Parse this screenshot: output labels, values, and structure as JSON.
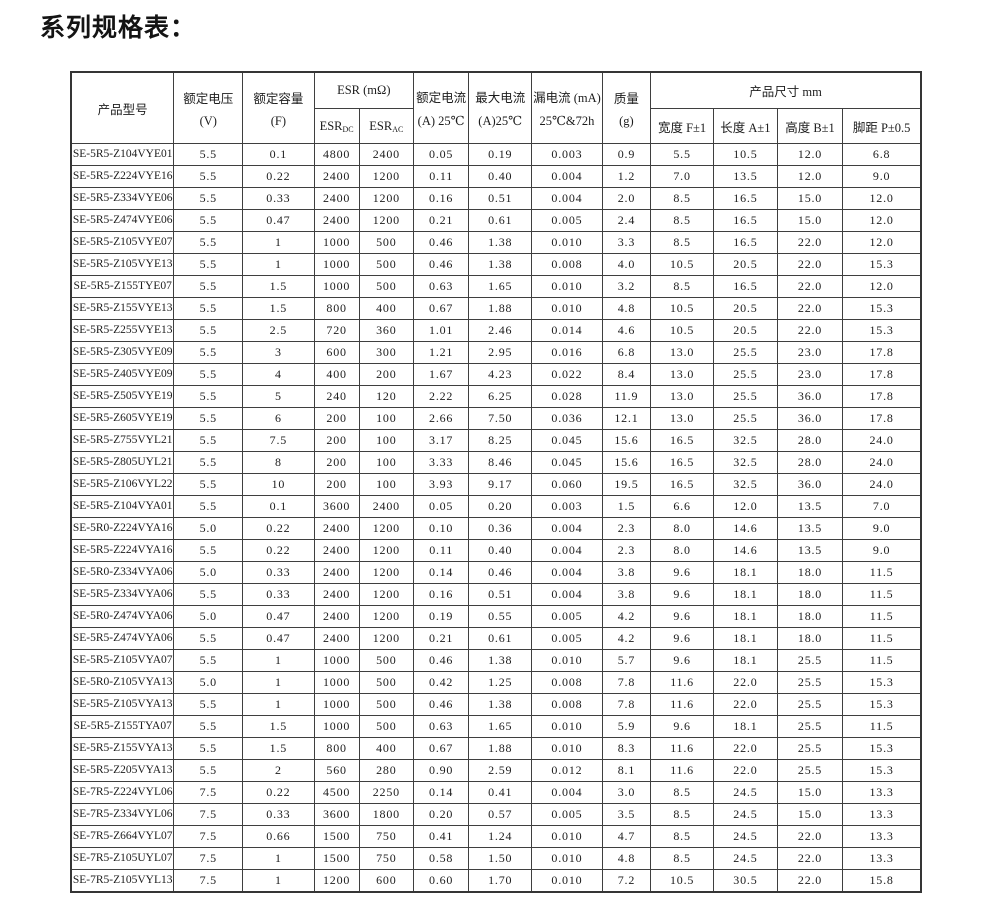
{
  "page": {
    "title": "系列规格表："
  },
  "table": {
    "header": {
      "model": "产品型号",
      "voltage_l1": "额定电压",
      "voltage_l2": "(V)",
      "capacity_l1": "额定容量",
      "capacity_l2": "(F)",
      "esr_group": "ESR (mΩ)",
      "esr_dc_base": "ESR",
      "esr_dc_sub": "DC",
      "esr_ac_base": "ESR",
      "esr_ac_sub": "AC",
      "rated_l1": "额定电流",
      "rated_l2": "(A) 25℃",
      "max_l1": "最大电流",
      "max_l2": "(A)25℃",
      "leak_l1": "漏电流 (mA)",
      "leak_l2": "25℃&72h",
      "mass_l1": "质量",
      "mass_l2": "(g)",
      "dim_group": "产品尺寸 mm",
      "dim_width": "宽度 F±1",
      "dim_length": "长度 A±1",
      "dim_height": "高度 B±1",
      "dim_pitch": "脚距 P±0.5"
    },
    "column_keys": [
      "model",
      "voltage",
      "capacity",
      "esr_dc",
      "esr_ac",
      "rated_current",
      "max_current",
      "leakage",
      "mass",
      "width",
      "length",
      "height",
      "pitch"
    ],
    "rows": [
      [
        "SE-5R5-Z104VYE01",
        "5.5",
        "0.1",
        "4800",
        "2400",
        "0.05",
        "0.19",
        "0.003",
        "0.9",
        "5.5",
        "10.5",
        "12.0",
        "6.8"
      ],
      [
        "SE-5R5-Z224VYE16",
        "5.5",
        "0.22",
        "2400",
        "1200",
        "0.11",
        "0.40",
        "0.004",
        "1.2",
        "7.0",
        "13.5",
        "12.0",
        "9.0"
      ],
      [
        "SE-5R5-Z334VYE06",
        "5.5",
        "0.33",
        "2400",
        "1200",
        "0.16",
        "0.51",
        "0.004",
        "2.0",
        "8.5",
        "16.5",
        "15.0",
        "12.0"
      ],
      [
        "SE-5R5-Z474VYE06",
        "5.5",
        "0.47",
        "2400",
        "1200",
        "0.21",
        "0.61",
        "0.005",
        "2.4",
        "8.5",
        "16.5",
        "15.0",
        "12.0"
      ],
      [
        "SE-5R5-Z105VYE07",
        "5.5",
        "1",
        "1000",
        "500",
        "0.46",
        "1.38",
        "0.010",
        "3.3",
        "8.5",
        "16.5",
        "22.0",
        "12.0"
      ],
      [
        "SE-5R5-Z105VYE13",
        "5.5",
        "1",
        "1000",
        "500",
        "0.46",
        "1.38",
        "0.008",
        "4.0",
        "10.5",
        "20.5",
        "22.0",
        "15.3"
      ],
      [
        "SE-5R5-Z155TYE07",
        "5.5",
        "1.5",
        "1000",
        "500",
        "0.63",
        "1.65",
        "0.010",
        "3.2",
        "8.5",
        "16.5",
        "22.0",
        "12.0"
      ],
      [
        "SE-5R5-Z155VYE13",
        "5.5",
        "1.5",
        "800",
        "400",
        "0.67",
        "1.88",
        "0.010",
        "4.8",
        "10.5",
        "20.5",
        "22.0",
        "15.3"
      ],
      [
        "SE-5R5-Z255VYE13",
        "5.5",
        "2.5",
        "720",
        "360",
        "1.01",
        "2.46",
        "0.014",
        "4.6",
        "10.5",
        "20.5",
        "22.0",
        "15.3"
      ],
      [
        "SE-5R5-Z305VYE09",
        "5.5",
        "3",
        "600",
        "300",
        "1.21",
        "2.95",
        "0.016",
        "6.8",
        "13.0",
        "25.5",
        "23.0",
        "17.8"
      ],
      [
        "SE-5R5-Z405VYE09",
        "5.5",
        "4",
        "400",
        "200",
        "1.67",
        "4.23",
        "0.022",
        "8.4",
        "13.0",
        "25.5",
        "23.0",
        "17.8"
      ],
      [
        "SE-5R5-Z505VYE19",
        "5.5",
        "5",
        "240",
        "120",
        "2.22",
        "6.25",
        "0.028",
        "11.9",
        "13.0",
        "25.5",
        "36.0",
        "17.8"
      ],
      [
        "SE-5R5-Z605VYE19",
        "5.5",
        "6",
        "200",
        "100",
        "2.66",
        "7.50",
        "0.036",
        "12.1",
        "13.0",
        "25.5",
        "36.0",
        "17.8"
      ],
      [
        "SE-5R5-Z755VYL21",
        "5.5",
        "7.5",
        "200",
        "100",
        "3.17",
        "8.25",
        "0.045",
        "15.6",
        "16.5",
        "32.5",
        "28.0",
        "24.0"
      ],
      [
        "SE-5R5-Z805UYL21",
        "5.5",
        "8",
        "200",
        "100",
        "3.33",
        "8.46",
        "0.045",
        "15.6",
        "16.5",
        "32.5",
        "28.0",
        "24.0"
      ],
      [
        "SE-5R5-Z106VYL22",
        "5.5",
        "10",
        "200",
        "100",
        "3.93",
        "9.17",
        "0.060",
        "19.5",
        "16.5",
        "32.5",
        "36.0",
        "24.0"
      ],
      [
        "SE-5R5-Z104VYA01",
        "5.5",
        "0.1",
        "3600",
        "2400",
        "0.05",
        "0.20",
        "0.003",
        "1.5",
        "6.6",
        "12.0",
        "13.5",
        "7.0"
      ],
      [
        "SE-5R0-Z224VYA16",
        "5.0",
        "0.22",
        "2400",
        "1200",
        "0.10",
        "0.36",
        "0.004",
        "2.3",
        "8.0",
        "14.6",
        "13.5",
        "9.0"
      ],
      [
        "SE-5R5-Z224VYA16",
        "5.5",
        "0.22",
        "2400",
        "1200",
        "0.11",
        "0.40",
        "0.004",
        "2.3",
        "8.0",
        "14.6",
        "13.5",
        "9.0"
      ],
      [
        "SE-5R0-Z334VYA06",
        "5.0",
        "0.33",
        "2400",
        "1200",
        "0.14",
        "0.46",
        "0.004",
        "3.8",
        "9.6",
        "18.1",
        "18.0",
        "11.5"
      ],
      [
        "SE-5R5-Z334VYA06",
        "5.5",
        "0.33",
        "2400",
        "1200",
        "0.16",
        "0.51",
        "0.004",
        "3.8",
        "9.6",
        "18.1",
        "18.0",
        "11.5"
      ],
      [
        "SE-5R0-Z474VYA06",
        "5.0",
        "0.47",
        "2400",
        "1200",
        "0.19",
        "0.55",
        "0.005",
        "4.2",
        "9.6",
        "18.1",
        "18.0",
        "11.5"
      ],
      [
        "SE-5R5-Z474VYA06",
        "5.5",
        "0.47",
        "2400",
        "1200",
        "0.21",
        "0.61",
        "0.005",
        "4.2",
        "9.6",
        "18.1",
        "18.0",
        "11.5"
      ],
      [
        "SE-5R5-Z105VYA07",
        "5.5",
        "1",
        "1000",
        "500",
        "0.46",
        "1.38",
        "0.010",
        "5.7",
        "9.6",
        "18.1",
        "25.5",
        "11.5"
      ],
      [
        "SE-5R0-Z105VYA13",
        "5.0",
        "1",
        "1000",
        "500",
        "0.42",
        "1.25",
        "0.008",
        "7.8",
        "11.6",
        "22.0",
        "25.5",
        "15.3"
      ],
      [
        "SE-5R5-Z105VYA13",
        "5.5",
        "1",
        "1000",
        "500",
        "0.46",
        "1.38",
        "0.008",
        "7.8",
        "11.6",
        "22.0",
        "25.5",
        "15.3"
      ],
      [
        "SE-5R5-Z155TYA07",
        "5.5",
        "1.5",
        "1000",
        "500",
        "0.63",
        "1.65",
        "0.010",
        "5.9",
        "9.6",
        "18.1",
        "25.5",
        "11.5"
      ],
      [
        "SE-5R5-Z155VYA13",
        "5.5",
        "1.5",
        "800",
        "400",
        "0.67",
        "1.88",
        "0.010",
        "8.3",
        "11.6",
        "22.0",
        "25.5",
        "15.3"
      ],
      [
        "SE-5R5-Z205VYA13",
        "5.5",
        "2",
        "560",
        "280",
        "0.90",
        "2.59",
        "0.012",
        "8.1",
        "11.6",
        "22.0",
        "25.5",
        "15.3"
      ],
      [
        "SE-7R5-Z224VYL06",
        "7.5",
        "0.22",
        "4500",
        "2250",
        "0.14",
        "0.41",
        "0.004",
        "3.0",
        "8.5",
        "24.5",
        "15.0",
        "13.3"
      ],
      [
        "SE-7R5-Z334VYL06",
        "7.5",
        "0.33",
        "3600",
        "1800",
        "0.20",
        "0.57",
        "0.005",
        "3.5",
        "8.5",
        "24.5",
        "15.0",
        "13.3"
      ],
      [
        "SE-7R5-Z664VYL07",
        "7.5",
        "0.66",
        "1500",
        "750",
        "0.41",
        "1.24",
        "0.010",
        "4.7",
        "8.5",
        "24.5",
        "22.0",
        "13.3"
      ],
      [
        "SE-7R5-Z105UYL07",
        "7.5",
        "1",
        "1500",
        "750",
        "0.58",
        "1.50",
        "0.010",
        "4.8",
        "8.5",
        "24.5",
        "22.0",
        "13.3"
      ],
      [
        "SE-7R5-Z105VYL13",
        "7.5",
        "1",
        "1200",
        "600",
        "0.60",
        "1.70",
        "0.010",
        "7.2",
        "10.5",
        "30.5",
        "22.0",
        "15.8"
      ]
    ]
  }
}
